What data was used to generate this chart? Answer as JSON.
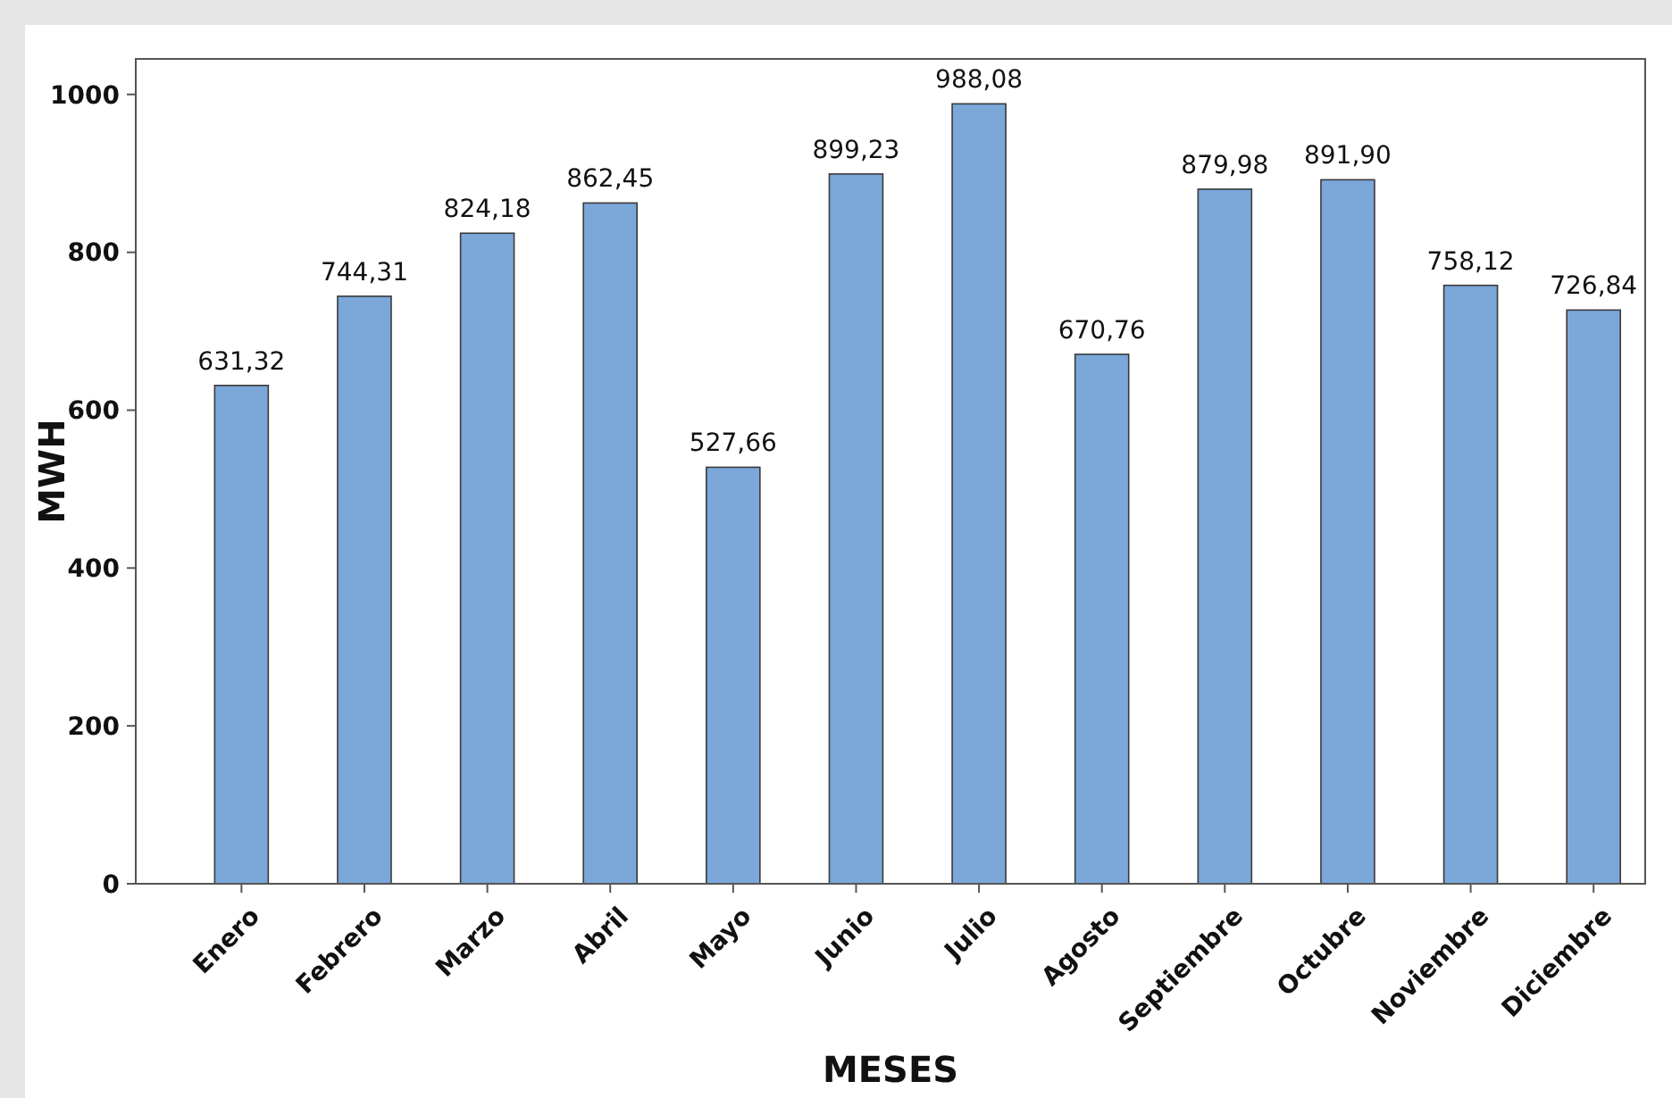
{
  "chart_data": {
    "type": "bar",
    "xlabel": "MESES",
    "ylabel": "MWH",
    "categories": [
      "Enero",
      "Febrero",
      "Marzo",
      "Abril",
      "Mayo",
      "Junio",
      "Julio",
      "Agosto",
      "Septiembre",
      "Octubre",
      "Noviembre",
      "Diciembre"
    ],
    "values": [
      631.32,
      744.31,
      824.18,
      862.45,
      527.66,
      899.23,
      988.08,
      670.76,
      879.98,
      891.9,
      758.12,
      726.84
    ],
    "value_labels": [
      "631,32",
      "744,31",
      "824,18",
      "862,45",
      "527,66",
      "899,23",
      "988,08",
      "670,76",
      "879,98",
      "891,90",
      "758,12",
      "726,84"
    ],
    "color": "#7ba7d9",
    "ylim": [
      0,
      1045
    ],
    "yticks": [
      0,
      200,
      400,
      600,
      800,
      1000
    ],
    "grid": false
  }
}
